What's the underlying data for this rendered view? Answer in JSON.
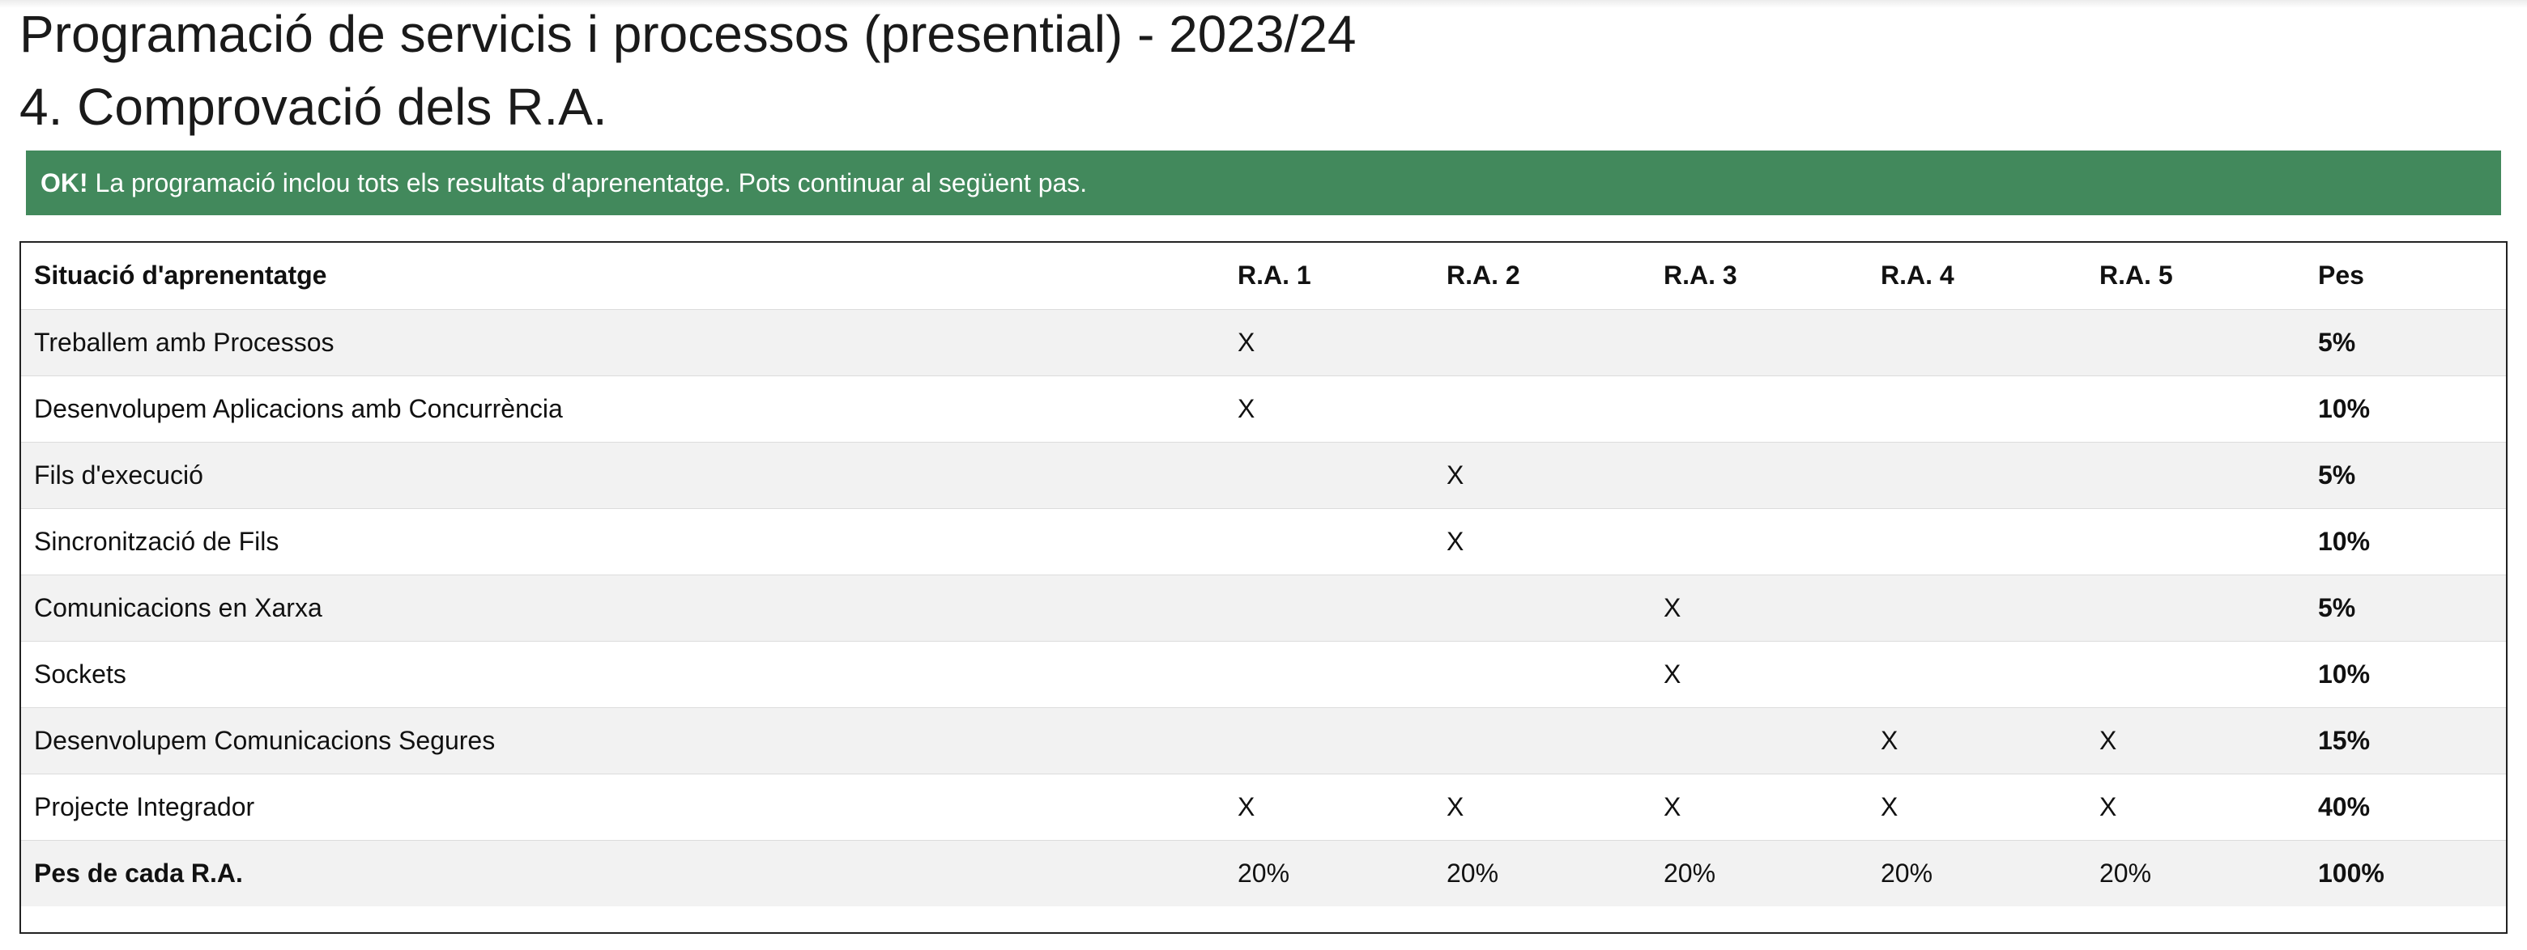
{
  "header": {
    "title": "Programació de servicis i processos (presential) - 2023/24",
    "step_title": "4. Comprovació dels R.A."
  },
  "alert": {
    "strong": "OK!",
    "message": " La programació inclou tots els resultats d'aprenentatge. Pots continuar al següent pas.",
    "color": "#42895c"
  },
  "table": {
    "headers": [
      "Situació d'aprenentatge",
      "R.A. 1",
      "R.A. 2",
      "R.A. 3",
      "R.A. 4",
      "R.A. 5",
      "Pes"
    ],
    "rows": [
      {
        "name": "Treballem amb Processos",
        "cells": [
          "X",
          "",
          "",
          "",
          ""
        ],
        "pes": "5%"
      },
      {
        "name": "Desenvolupem Aplicacions amb Concurrència",
        "cells": [
          "X",
          "",
          "",
          "",
          ""
        ],
        "pes": "10%"
      },
      {
        "name": "Fils d'execució",
        "cells": [
          "",
          "X",
          "",
          "",
          ""
        ],
        "pes": "5%"
      },
      {
        "name": "Sincronització de Fils",
        "cells": [
          "",
          "X",
          "",
          "",
          ""
        ],
        "pes": "10%"
      },
      {
        "name": "Comunicacions en Xarxa",
        "cells": [
          "",
          "",
          "X",
          "",
          ""
        ],
        "pes": "5%"
      },
      {
        "name": "Sockets",
        "cells": [
          "",
          "",
          "X",
          "",
          ""
        ],
        "pes": "10%"
      },
      {
        "name": "Desenvolupem Comunicacions Segures",
        "cells": [
          "",
          "",
          "",
          "X",
          "X"
        ],
        "pes": "15%"
      },
      {
        "name": "Projecte Integrador",
        "cells": [
          "X",
          "X",
          "X",
          "X",
          "X"
        ],
        "pes": "40%"
      }
    ],
    "footer": {
      "name": "Pes de cada R.A.",
      "cells": [
        "20%",
        "20%",
        "20%",
        "20%",
        "20%"
      ],
      "pes": "100%"
    }
  }
}
